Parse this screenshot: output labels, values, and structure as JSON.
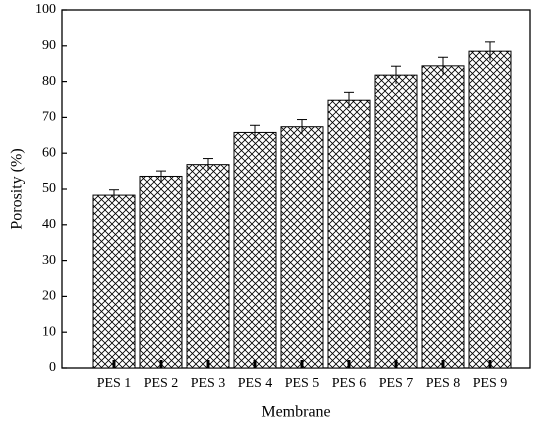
{
  "chart_data": {
    "type": "bar",
    "x_label": "Membrane",
    "y_label": "Porosity (%)",
    "categories": [
      "PES 1",
      "PES 2",
      "PES 3",
      "PES 4",
      "PES 5",
      "PES 6",
      "PES 7",
      "PES 8",
      "PES 9"
    ],
    "values": [
      48.3,
      53.5,
      56.8,
      65.8,
      67.4,
      74.8,
      81.8,
      84.4,
      88.5
    ],
    "errors": [
      1.5,
      1.5,
      1.7,
      2.0,
      2.0,
      2.2,
      2.5,
      2.4,
      2.6
    ],
    "color": "#000000",
    "ylim": [
      0,
      100
    ],
    "yticks": [
      0,
      10,
      20,
      30,
      40,
      50,
      60,
      70,
      80,
      90,
      100
    ]
  }
}
